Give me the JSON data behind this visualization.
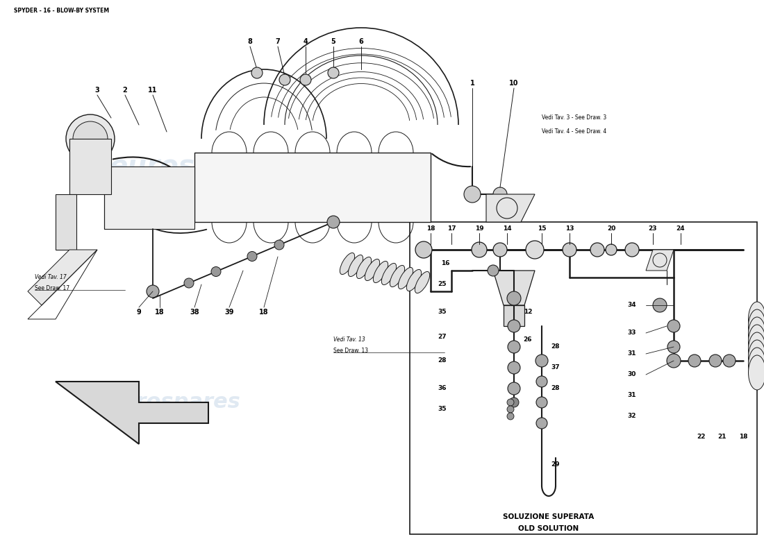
{
  "title": "SPYDER - 16 - BLOW-BY SYSTEM",
  "bg": "#ffffff",
  "line_color": "#1a1a1a",
  "wm_color": "#c8d8e8",
  "wm_text": "eurospares",
  "box_label1": "SOLUZIONE SUPERATA",
  "box_label2": "OLD SOLUTION",
  "vedi3": "Vedi Tav. 3 - See Draw. 3",
  "vedi4": "Vedi Tav. 4 - See Draw. 4",
  "vedi17a": "Vedi Tav. 17",
  "vedi17b": "See Draw. 17",
  "vedi13a": "Vedi Tav. 13",
  "vedi13b": "See Draw. 13"
}
